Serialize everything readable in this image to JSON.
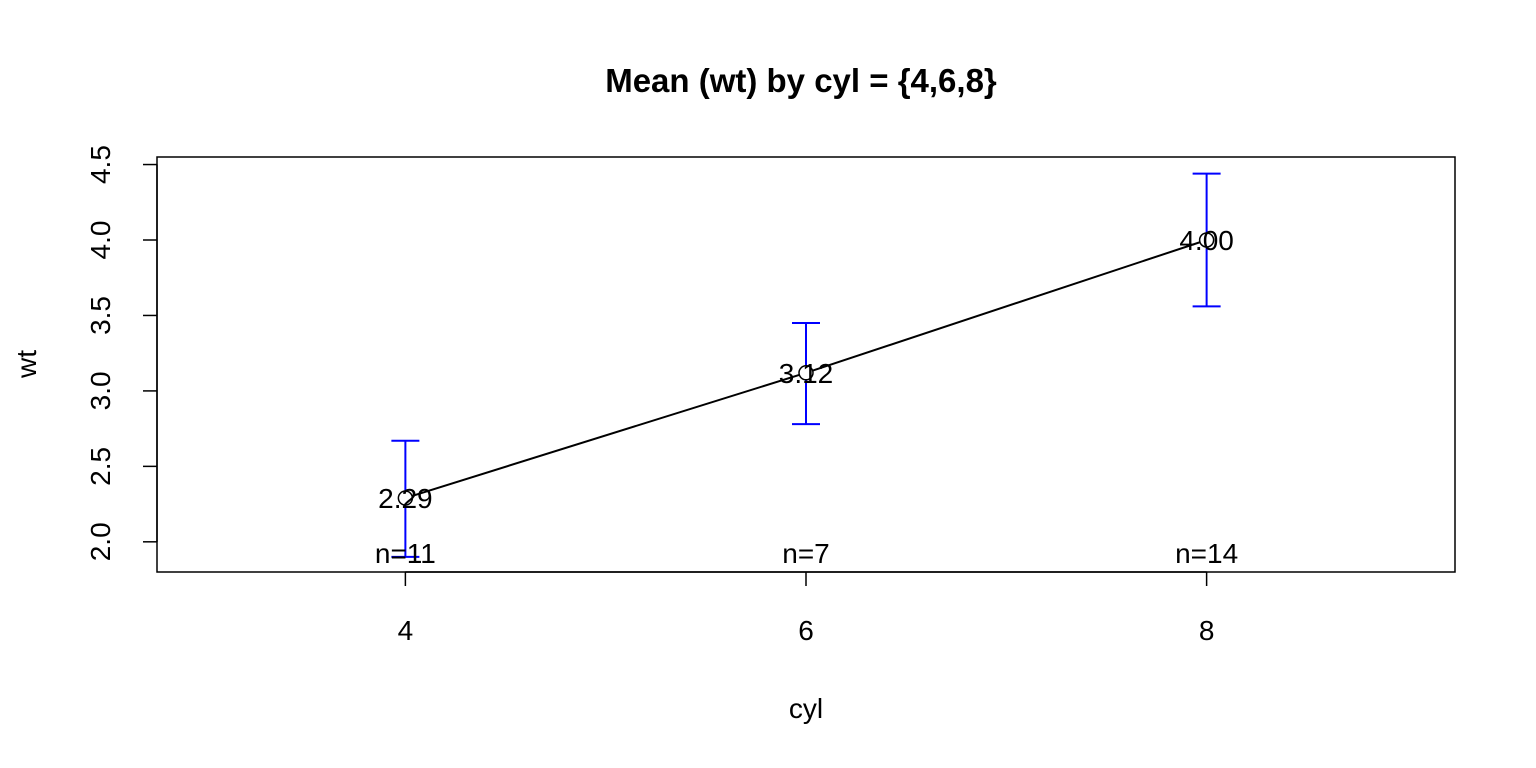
{
  "chart_data": {
    "type": "line",
    "title": "Mean (wt) by cyl = {4,6,8}",
    "xlabel": "cyl",
    "ylabel": "wt",
    "x": [
      4,
      6,
      8
    ],
    "x_tick_labels": [
      "4",
      "6",
      "8"
    ],
    "xlim": [
      2.76,
      9.24
    ],
    "ylim": [
      1.8,
      4.55
    ],
    "y_ticks": [
      2.0,
      2.5,
      3.0,
      3.5,
      4.0,
      4.5
    ],
    "y_tick_labels": [
      "2.0",
      "2.5",
      "3.0",
      "3.5",
      "4.0",
      "4.5"
    ],
    "series": [
      {
        "values": [
          2.29,
          3.12,
          4.0
        ],
        "value_labels": [
          "2.29",
          "3.12",
          "4.00"
        ],
        "ci_lower": [
          1.9,
          2.78,
          3.56
        ],
        "ci_upper": [
          2.67,
          3.45,
          4.44
        ],
        "n_labels": [
          "n=11",
          "n=7",
          "n=14"
        ]
      }
    ],
    "line_color": "#000000",
    "error_bar_color": "#0000ff",
    "grid": false,
    "legend": "none"
  }
}
